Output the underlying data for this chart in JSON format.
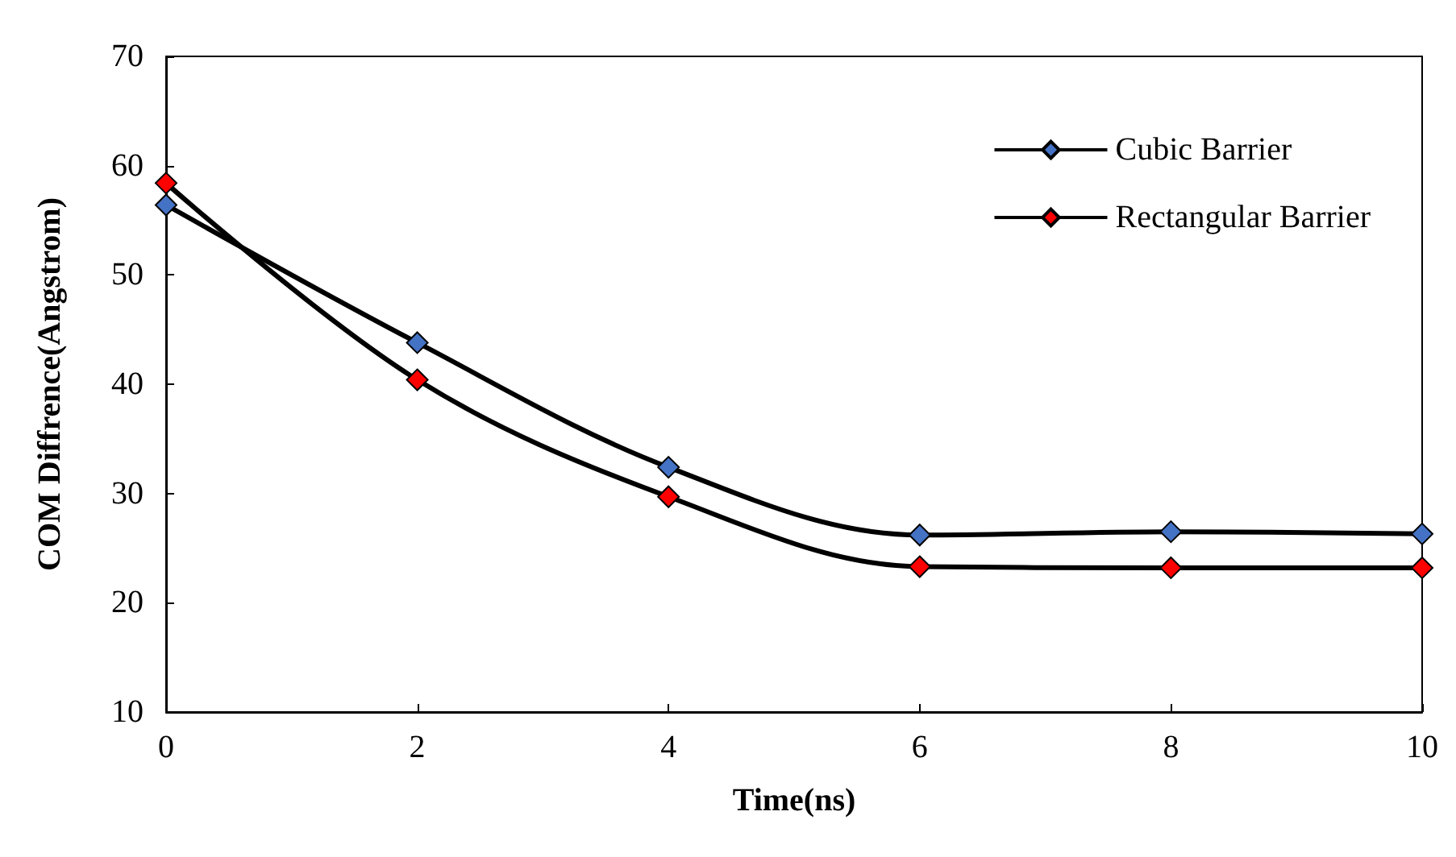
{
  "chart_data": {
    "type": "line",
    "xlabel": "Time(ns)",
    "ylabel": "COM Diffrence(Angstrom)",
    "x": [
      0,
      2,
      4,
      6,
      8,
      10
    ],
    "series": [
      {
        "name": "Cubic Barrier",
        "color": "#4472c4",
        "values": [
          56.4,
          43.8,
          32.4,
          26.2,
          26.5,
          26.3
        ]
      },
      {
        "name": "Rectangular Barrier",
        "color": "#ff0000",
        "values": [
          58.4,
          40.4,
          29.7,
          23.3,
          23.2,
          23.2
        ]
      }
    ],
    "xlim": [
      0,
      10
    ],
    "xticks": [
      0,
      2,
      4,
      6,
      8,
      10
    ],
    "ylim": [
      10,
      70
    ],
    "yticks": [
      10,
      20,
      30,
      40,
      50,
      60,
      70
    ],
    "grid": false,
    "legend": "top right",
    "marker": "diamond",
    "line_style": "solid"
  }
}
